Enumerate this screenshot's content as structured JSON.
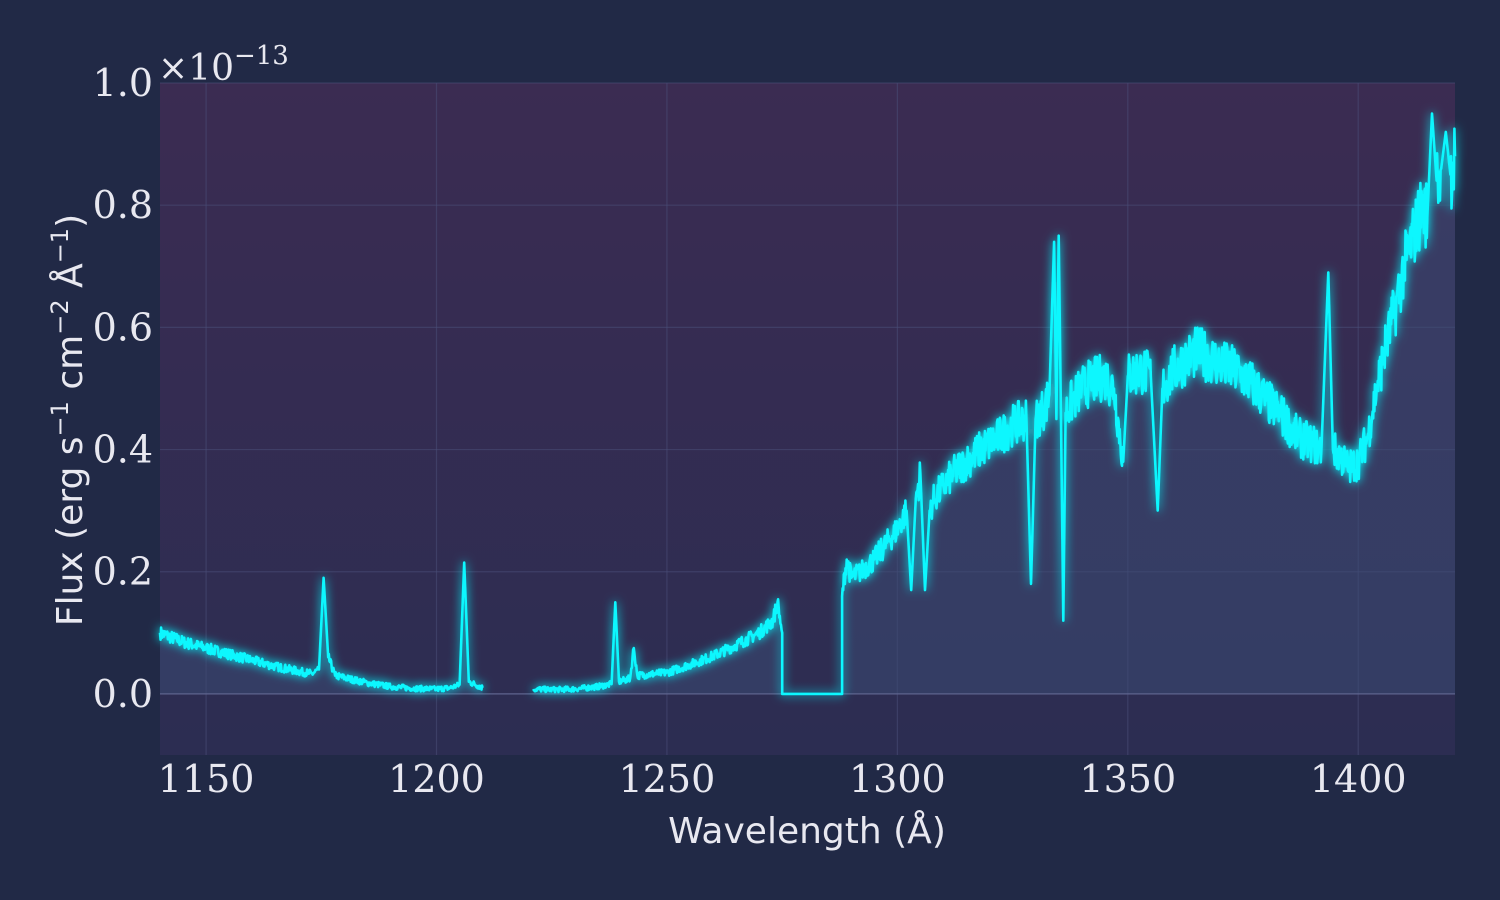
{
  "chart_data": {
    "type": "line",
    "title": "",
    "xlabel": "Wavelength (Å)",
    "ylabel_parts": {
      "base": "Flux (erg s",
      "sup1": "−1",
      "mid": " cm",
      "sup2": "−2",
      "mid2": " Å",
      "sup3": "−1",
      "end": ")"
    },
    "y_scale_exponent": {
      "prefix": "×10",
      "sup": "−13"
    },
    "xlim": [
      1140,
      1421
    ],
    "ylim": [
      -0.1,
      1.0
    ],
    "xticks": [
      1150,
      1200,
      1250,
      1300,
      1350,
      1400
    ],
    "xtick_labels": [
      "1150",
      "1200",
      "1250",
      "1300",
      "1350",
      "1400"
    ],
    "yticks": [
      0.0,
      0.2,
      0.4,
      0.6,
      0.8,
      1.0
    ],
    "ytick_labels": [
      "0.0",
      "0.2",
      "0.4",
      "0.6",
      "0.8",
      "1.0"
    ],
    "grid": true,
    "line_color": "#08F7FE",
    "fill_color": "#3a4a72",
    "segments": [
      {
        "name": "segment-a",
        "points": [
          [
            1140,
            0.1
          ],
          [
            1145,
            0.085
          ],
          [
            1150,
            0.075
          ],
          [
            1155,
            0.065
          ],
          [
            1160,
            0.055
          ],
          [
            1165,
            0.045
          ],
          [
            1170,
            0.037
          ],
          [
            1173,
            0.033
          ],
          [
            1174.5,
            0.04
          ],
          [
            1175.5,
            0.19
          ],
          [
            1176.5,
            0.06
          ],
          [
            1178,
            0.03
          ],
          [
            1185,
            0.018
          ],
          [
            1190,
            0.012
          ],
          [
            1195,
            0.009
          ],
          [
            1200,
            0.008
          ],
          [
            1203,
            0.01
          ],
          [
            1205,
            0.015
          ],
          [
            1206,
            0.215
          ],
          [
            1207,
            0.02
          ],
          [
            1210,
            0.01
          ]
        ]
      },
      {
        "name": "segment-b",
        "points": [
          [
            1221,
            0.008
          ],
          [
            1225,
            0.007
          ],
          [
            1230,
            0.008
          ],
          [
            1235,
            0.012
          ],
          [
            1238,
            0.016
          ],
          [
            1238.8,
            0.15
          ],
          [
            1239.6,
            0.02
          ],
          [
            1242,
            0.025
          ],
          [
            1242.8,
            0.075
          ],
          [
            1243.6,
            0.03
          ],
          [
            1250,
            0.035
          ],
          [
            1255,
            0.048
          ],
          [
            1260,
            0.062
          ],
          [
            1265,
            0.08
          ],
          [
            1270,
            0.1
          ],
          [
            1273,
            0.12
          ],
          [
            1274,
            0.15
          ],
          [
            1275,
            0.1
          ],
          [
            1275,
            0.0
          ],
          [
            1288,
            0.0
          ],
          [
            1288,
            0.16
          ],
          [
            1289,
            0.22
          ],
          [
            1290,
            0.19
          ],
          [
            1292,
            0.2
          ],
          [
            1295,
            0.22
          ],
          [
            1298,
            0.25
          ],
          [
            1300,
            0.27
          ],
          [
            1302,
            0.3
          ],
          [
            1303,
            0.17
          ],
          [
            1304,
            0.32
          ],
          [
            1305,
            0.36
          ],
          [
            1306,
            0.17
          ],
          [
            1307,
            0.3
          ],
          [
            1308,
            0.32
          ],
          [
            1310,
            0.34
          ],
          [
            1312,
            0.36
          ],
          [
            1315,
            0.38
          ],
          [
            1318,
            0.4
          ],
          [
            1320,
            0.41
          ],
          [
            1322,
            0.42
          ],
          [
            1325,
            0.44
          ],
          [
            1328,
            0.45
          ],
          [
            1329,
            0.18
          ],
          [
            1330,
            0.45
          ],
          [
            1332,
            0.47
          ],
          [
            1333,
            0.49
          ],
          [
            1334,
            0.74
          ],
          [
            1334.5,
            0.45
          ],
          [
            1335,
            0.75
          ],
          [
            1335.5,
            0.45
          ],
          [
            1336,
            0.12
          ],
          [
            1336.5,
            0.46
          ],
          [
            1338,
            0.48
          ],
          [
            1340,
            0.5
          ],
          [
            1342,
            0.51
          ],
          [
            1345,
            0.52
          ],
          [
            1347,
            0.5
          ],
          [
            1349,
            0.38
          ],
          [
            1350,
            0.52
          ],
          [
            1353,
            0.53
          ],
          [
            1355,
            0.52
          ],
          [
            1356.5,
            0.3
          ],
          [
            1357.5,
            0.5
          ],
          [
            1360,
            0.53
          ],
          [
            1363,
            0.55
          ],
          [
            1365,
            0.56
          ],
          [
            1368,
            0.55
          ],
          [
            1370,
            0.54
          ],
          [
            1373,
            0.53
          ],
          [
            1375,
            0.52
          ],
          [
            1378,
            0.5
          ],
          [
            1380,
            0.48
          ],
          [
            1383,
            0.46
          ],
          [
            1385,
            0.44
          ],
          [
            1387,
            0.42
          ],
          [
            1390,
            0.41
          ],
          [
            1392,
            0.4
          ],
          [
            1393.5,
            0.69
          ],
          [
            1394.5,
            0.4
          ],
          [
            1396,
            0.39
          ],
          [
            1398,
            0.37
          ],
          [
            1400,
            0.38
          ],
          [
            1402,
            0.42
          ],
          [
            1404,
            0.5
          ],
          [
            1406,
            0.57
          ],
          [
            1408,
            0.63
          ],
          [
            1410,
            0.7
          ],
          [
            1412,
            0.75
          ],
          [
            1414,
            0.8
          ],
          [
            1415,
            0.78
          ],
          [
            1416,
            0.95
          ],
          [
            1417,
            0.84
          ],
          [
            1418,
            0.86
          ],
          [
            1419,
            0.92
          ],
          [
            1420,
            0.85
          ],
          [
            1421,
            0.88
          ]
        ]
      }
    ]
  }
}
